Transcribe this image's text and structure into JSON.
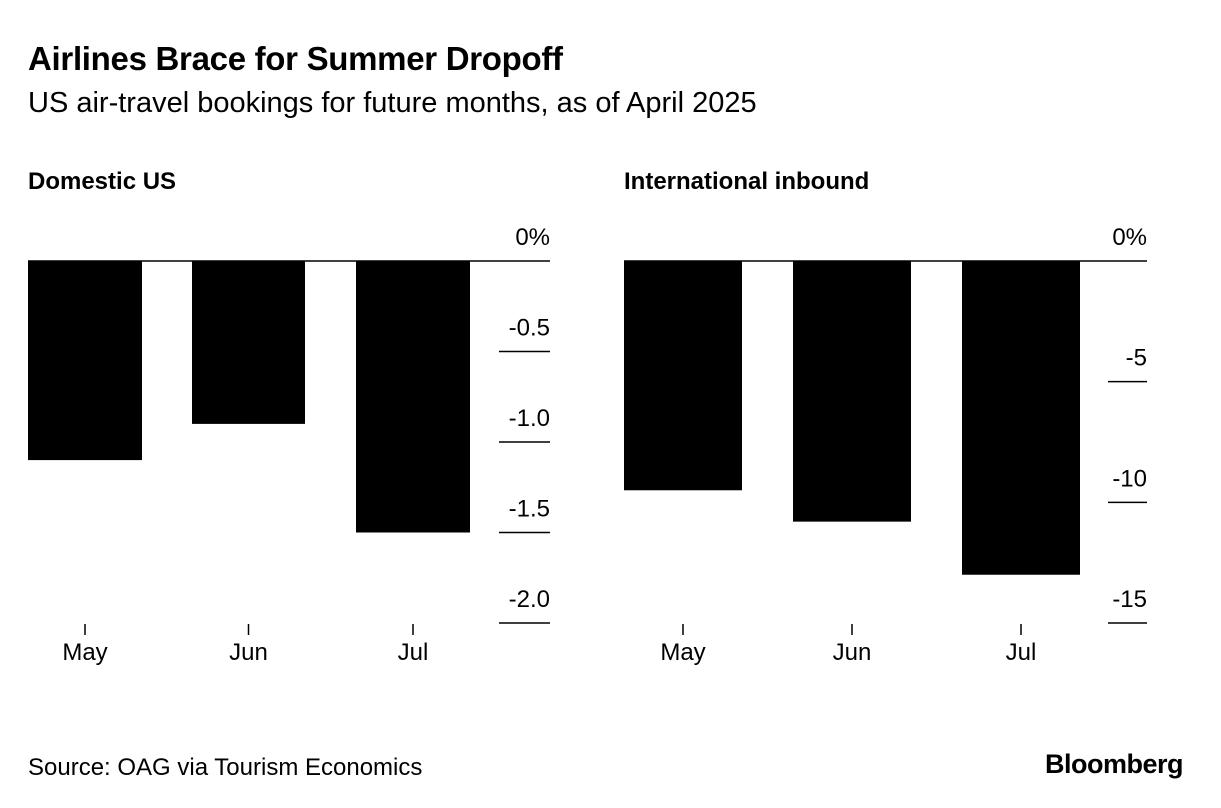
{
  "header": {
    "title": "Airlines Brace for Summer Dropoff",
    "subtitle": "US air-travel bookings for future months, as of April 2025"
  },
  "footer": {
    "source": "Source: OAG via Tourism Economics",
    "brand": "Bloomberg"
  },
  "colors": {
    "bar": "#000000",
    "axis": "#000000",
    "background": "#ffffff"
  },
  "chart_data": [
    {
      "type": "bar",
      "title": "Domestic US",
      "categories": [
        "May",
        "Jun",
        "Jul"
      ],
      "values": [
        -1.1,
        -0.9,
        -1.5
      ],
      "ylim": [
        -2.0,
        0
      ],
      "yticks": [
        0,
        -0.5,
        -1.0,
        -1.5,
        -2.0
      ],
      "ytick_labels": [
        "0%",
        "-0.5",
        "-1.0",
        "-1.5",
        "-2.0"
      ],
      "xlabel": "",
      "ylabel": "",
      "grid": false
    },
    {
      "type": "bar",
      "title": "International inbound",
      "categories": [
        "May",
        "Jun",
        "Jul"
      ],
      "values": [
        -9.5,
        -10.8,
        -13.0
      ],
      "ylim": [
        -15,
        0
      ],
      "yticks": [
        0,
        -5,
        -10,
        -15
      ],
      "ytick_labels": [
        "0%",
        "-5",
        "-10",
        "-15"
      ],
      "xlabel": "",
      "ylabel": "",
      "grid": false
    }
  ]
}
